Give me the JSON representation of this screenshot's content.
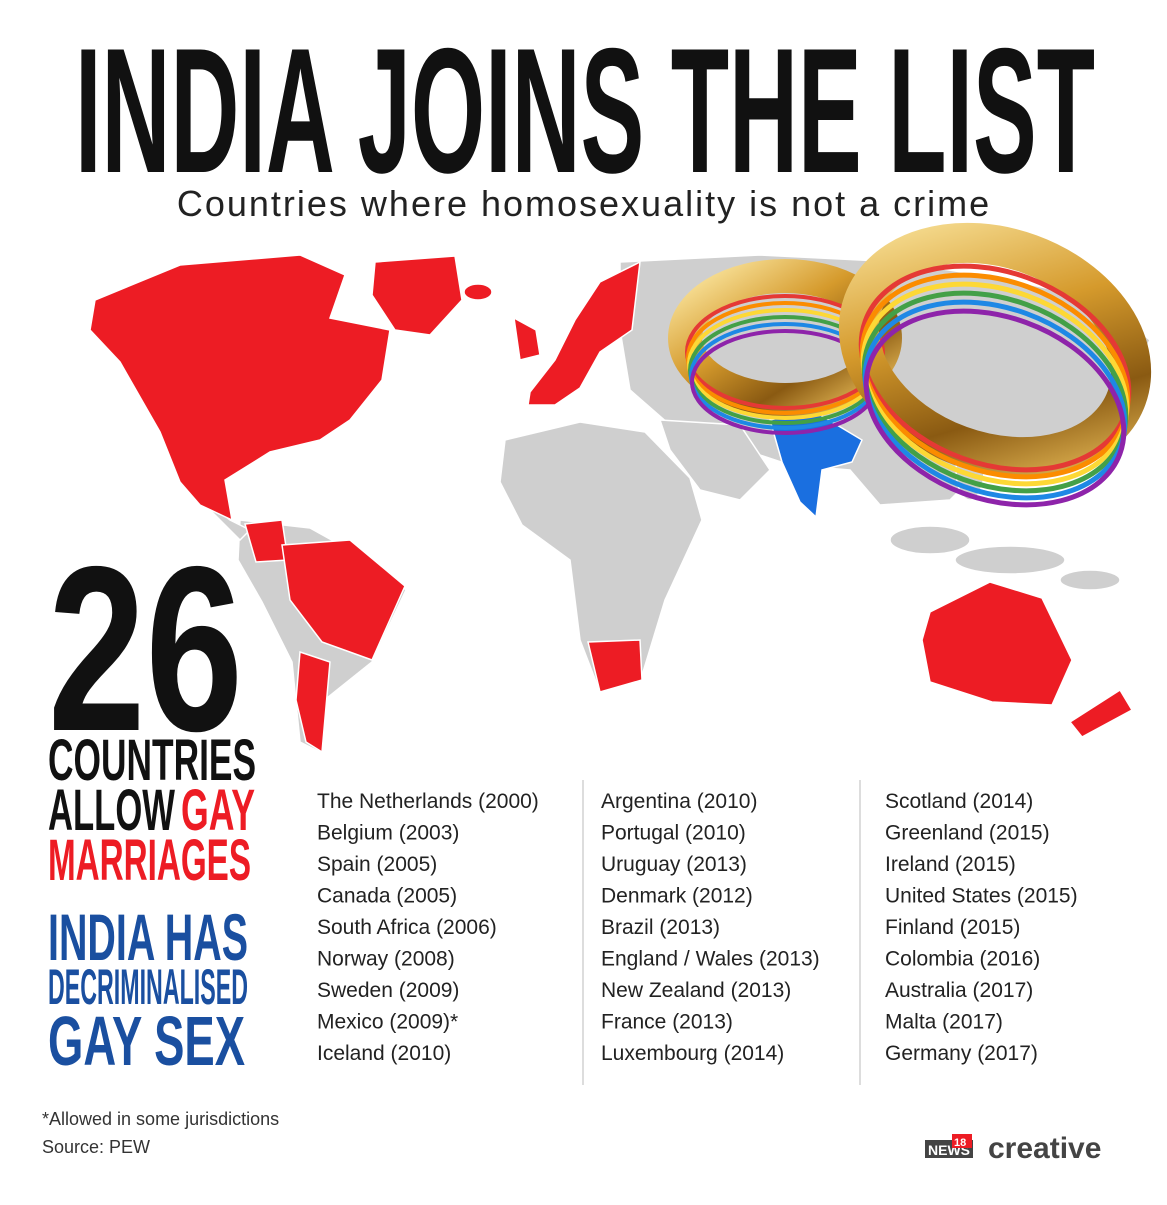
{
  "header": {
    "title": "INDIA JOINS THE LIST",
    "subtitle": "Countries where homosexuality is not a crime"
  },
  "stat": {
    "number": 26,
    "line1": "COUNTRIES",
    "line2": "ALLOW",
    "line2_highlight": "GAY",
    "line3": "MARRIAGES"
  },
  "india_note": {
    "lines": [
      "INDIA HAS",
      "DECRIMINALISED",
      "GAY SEX"
    ]
  },
  "countries": {
    "columns": [
      [
        "The Netherlands (2000)",
        "Belgium (2003)",
        "Spain (2005)",
        "Canada (2005)",
        "South Africa (2006)",
        "Norway (2008)",
        "Sweden (2009)",
        "Mexico (2009)*",
        "Iceland (2010)"
      ],
      [
        "Argentina (2010)",
        "Portugal (2010)",
        "Uruguay (2013)",
        "Denmark (2012)",
        "Brazil (2013)",
        "England / Wales (2013)",
        "New Zealand (2013)",
        "France (2013)",
        "Luxembourg (2014)"
      ],
      [
        "Scotland (2014)",
        "Greenland (2015)",
        "Ireland (2015)",
        "United States (2015)",
        "Finland (2015)",
        "Colombia (2016)",
        "Australia (2017)",
        "Malta (2017)",
        "Germany (2017)"
      ]
    ]
  },
  "footer": {
    "footnote": "*Allowed in some jurisdictions",
    "source": "Source: PEW",
    "logo_brand": "NEWS",
    "logo_number": "18",
    "logo_word": "creative"
  }
}
